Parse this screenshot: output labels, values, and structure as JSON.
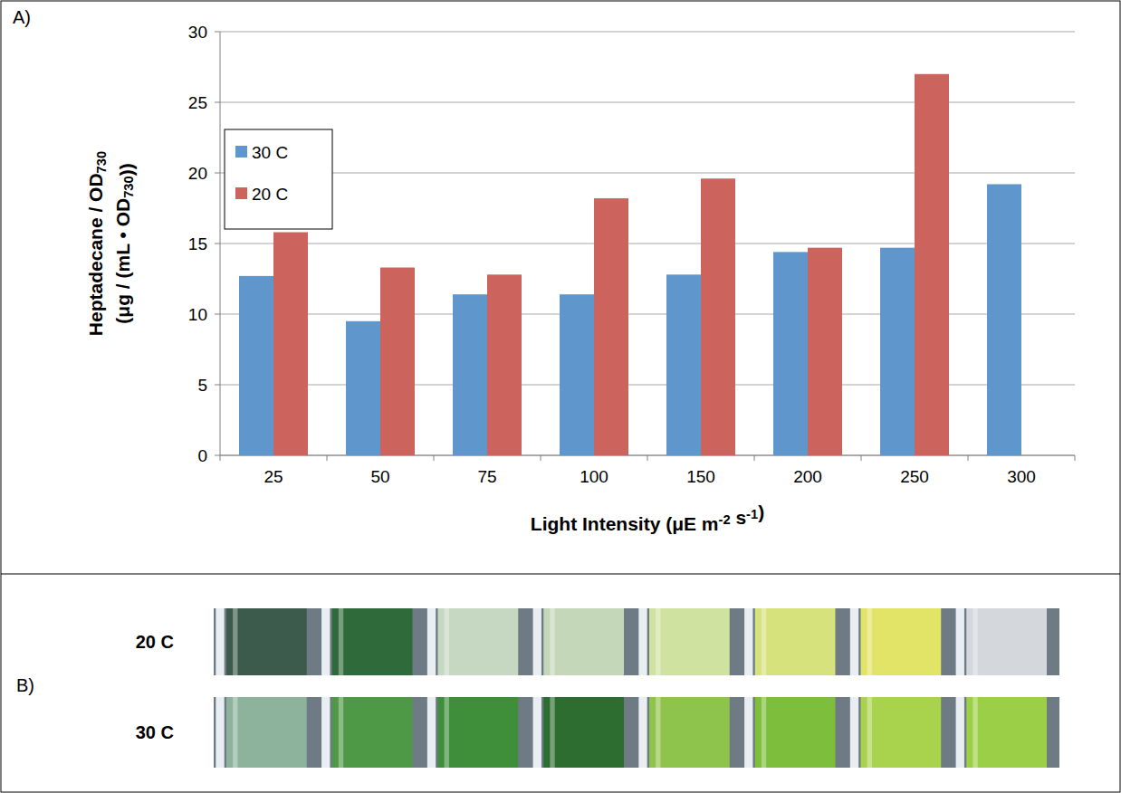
{
  "chart_data": {
    "type": "bar",
    "annotations": [
      "A)"
    ],
    "x_label": "Light Intensity (μE m-2 s-1)",
    "y_label": [
      "Heptadecane / OD730",
      "(μg / (mL • OD730))"
    ],
    "categories": [
      "25",
      "50",
      "75",
      "100",
      "150",
      "200",
      "250",
      "300"
    ],
    "series": [
      {
        "name": "30 C",
        "color": "#5f97cc",
        "values": [
          12.7,
          9.5,
          11.4,
          11.4,
          12.8,
          14.4,
          14.7,
          19.2
        ]
      },
      {
        "name": "20 C",
        "color": "#cc635c",
        "values": [
          15.8,
          13.3,
          12.8,
          18.2,
          19.6,
          14.7,
          27.0,
          null
        ]
      }
    ],
    "ylim": [
      0,
      30
    ],
    "yticks": [
      0,
      5,
      10,
      15,
      20,
      25,
      30
    ],
    "grid": true,
    "legend": "upper left"
  },
  "photo_panel": {
    "label": "B)",
    "rows": [
      {
        "label": "20 C",
        "colors": [
          "#3d5b4c",
          "#2f6a3a",
          "#c7d8c2",
          "#c4d7b8",
          "#d0e2a0",
          "#d6e27c",
          "#e2e468",
          "#d4d8dc"
        ]
      },
      {
        "label": "30 C",
        "colors": [
          "#8db39c",
          "#4e9946",
          "#3e8e3a",
          "#2e6d30",
          "#8ec44c",
          "#7dbe3c",
          "#a9d34c",
          "#9ccf48"
        ]
      }
    ]
  }
}
